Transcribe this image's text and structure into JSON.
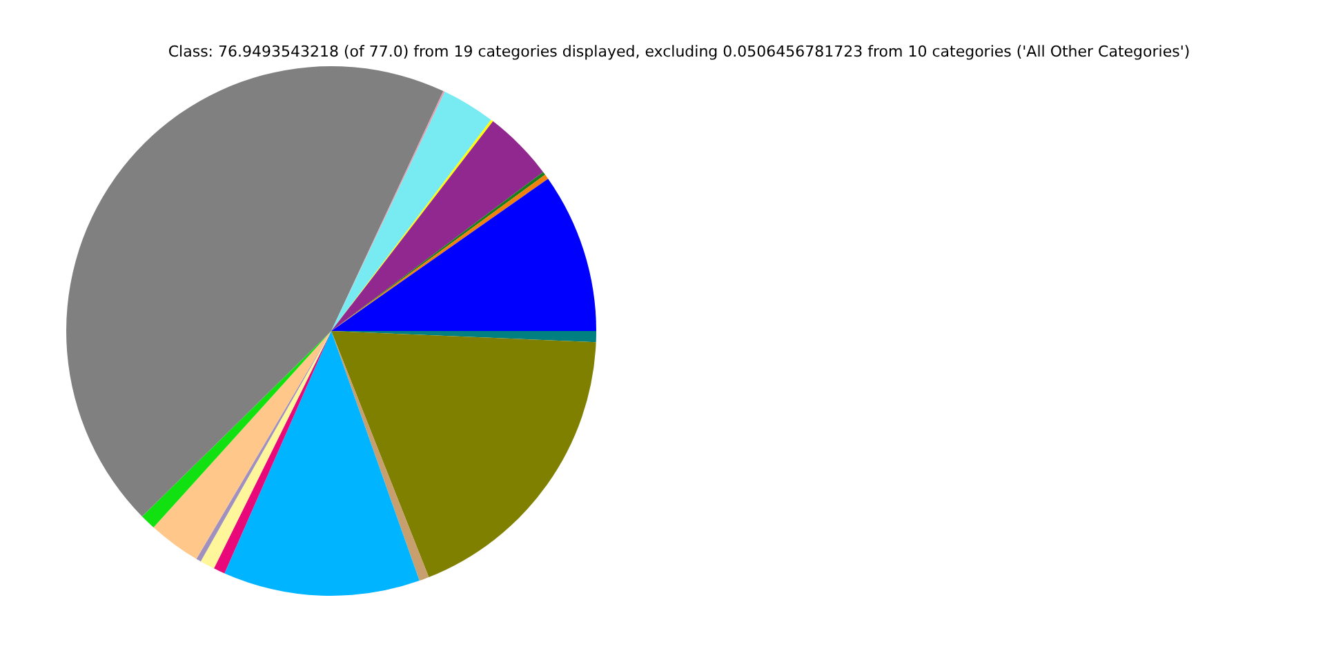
{
  "chart_data": {
    "type": "pie",
    "title": "Class: 76.9493543218 (of 77.0) from 19 categories displayed, excluding 0.0506456781723 from 10 categories ('All Other Categories')",
    "categories": [
      null,
      null,
      null,
      null,
      null,
      null,
      null,
      null,
      null,
      null,
      null,
      null,
      null,
      null,
      null,
      null,
      null
    ],
    "values": [
      9.75,
      0.3,
      0.2,
      4.3,
      0.15,
      3.25,
      0.1,
      44.3,
      0.95,
      3.2,
      0.3,
      0.9,
      0.7,
      12.0,
      0.6,
      18.33,
      0.67
    ],
    "colors": [
      "#0000ff",
      "#f08010",
      "#1a7f1a",
      "#902890",
      "#ffff00",
      "#78eaf2",
      "#e0a0b0",
      "#808080",
      "#11e011",
      "#ffc88a",
      "#a090c0",
      "#fff59a",
      "#e8087a",
      "#00b4ff",
      "#c8a070",
      "#808000",
      "#008080"
    ],
    "legend": false
  }
}
